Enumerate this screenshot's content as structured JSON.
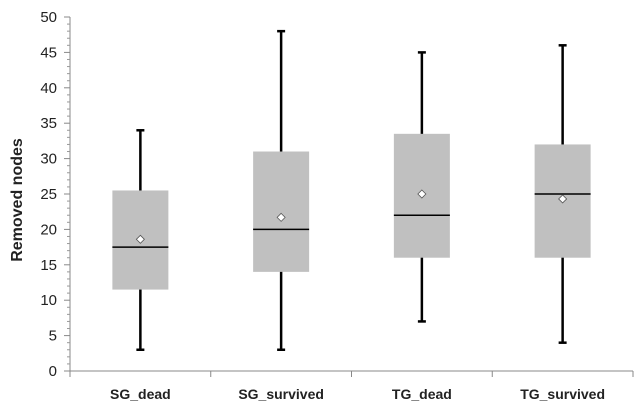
{
  "chart_data": {
    "type": "boxplot",
    "ylabel": "Removed nodes",
    "xlabel": "",
    "ylim": [
      0,
      50
    ],
    "yticks": [
      0,
      5,
      10,
      15,
      20,
      25,
      30,
      35,
      40,
      45,
      50
    ],
    "grid": false,
    "categories": [
      "SG_dead",
      "SG_survived",
      "TG_dead",
      "TG_survived"
    ],
    "boxes": [
      {
        "category": "SG_dead",
        "min": 3,
        "q1": 11.5,
        "median": 17.5,
        "q3": 25.5,
        "max": 34,
        "mean": 18.6
      },
      {
        "category": "SG_survived",
        "min": 3,
        "q1": 14,
        "median": 20,
        "q3": 31,
        "max": 48,
        "mean": 21.7
      },
      {
        "category": "TG_dead",
        "min": 7,
        "q1": 16,
        "median": 22,
        "q3": 33.5,
        "max": 45,
        "mean": 25
      },
      {
        "category": "TG_survived",
        "min": 4,
        "q1": 16,
        "median": 25,
        "q3": 32,
        "max": 46,
        "mean": 24.3
      }
    ],
    "colors": {
      "box": "#c0c0c0",
      "line": "#000000",
      "mean_marker": "#ffffff"
    }
  }
}
